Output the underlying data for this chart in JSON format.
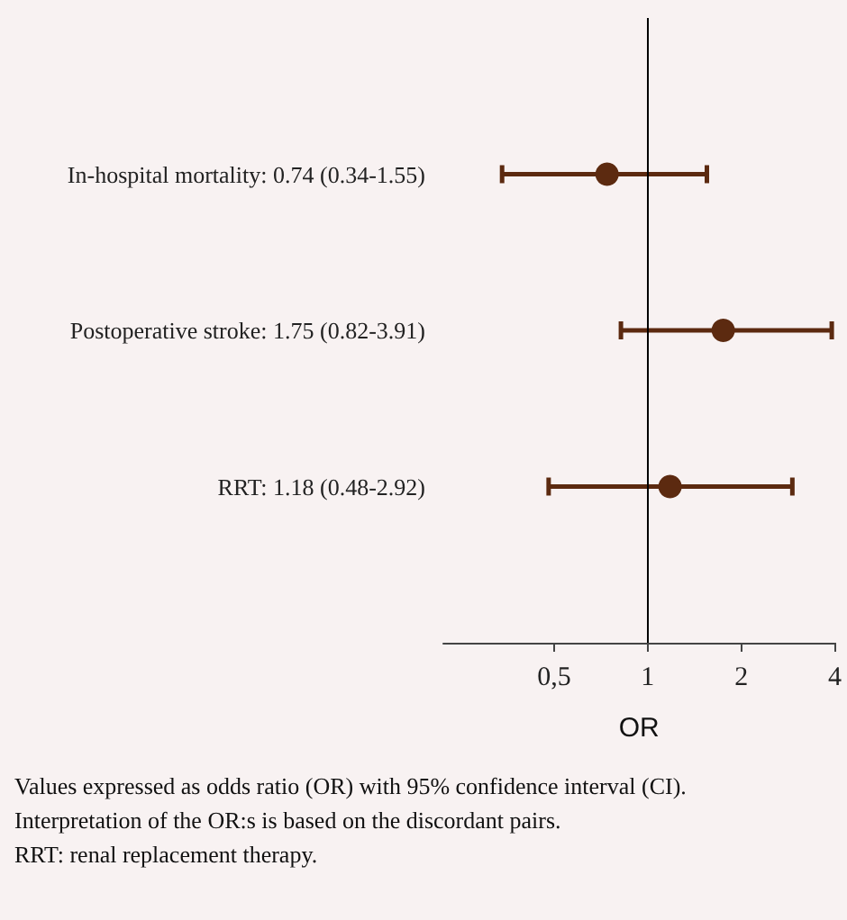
{
  "chart_data": {
    "type": "scatter",
    "orientation": "horizontal",
    "log": "x",
    "categories": [
      null,
      "In-hospital mortality: 0.74 (0.34-1.55)",
      "Postoperative stroke: 1.75 (0.82-3.91)",
      "RRT: 1.18 (0.48-2.92)",
      null
    ],
    "values": [
      null,
      0.74,
      1.75,
      1.18,
      null
    ],
    "errors": [
      null,
      [
        0.34,
        1.55
      ],
      [
        0.82,
        3.91
      ],
      [
        0.48,
        2.92
      ],
      null
    ],
    "color": "#5c2a10",
    "marker": "circle",
    "xlim": [
      0.22,
      4
    ],
    "xticks": [
      {
        "value": 0.5,
        "label": "0,5"
      },
      1,
      2,
      4
    ],
    "xlabel": "OR",
    "ref_lines": [
      {
        "axis": "x",
        "value": 1,
        "color": "#000000"
      }
    ],
    "annotations": [
      "Values expressed as odds ratio (OR) with 95% confidence interval (CI).",
      "Interpretation of the OR:s is based on the discordant pairs.",
      "RRT: renal replacement therapy."
    ]
  }
}
